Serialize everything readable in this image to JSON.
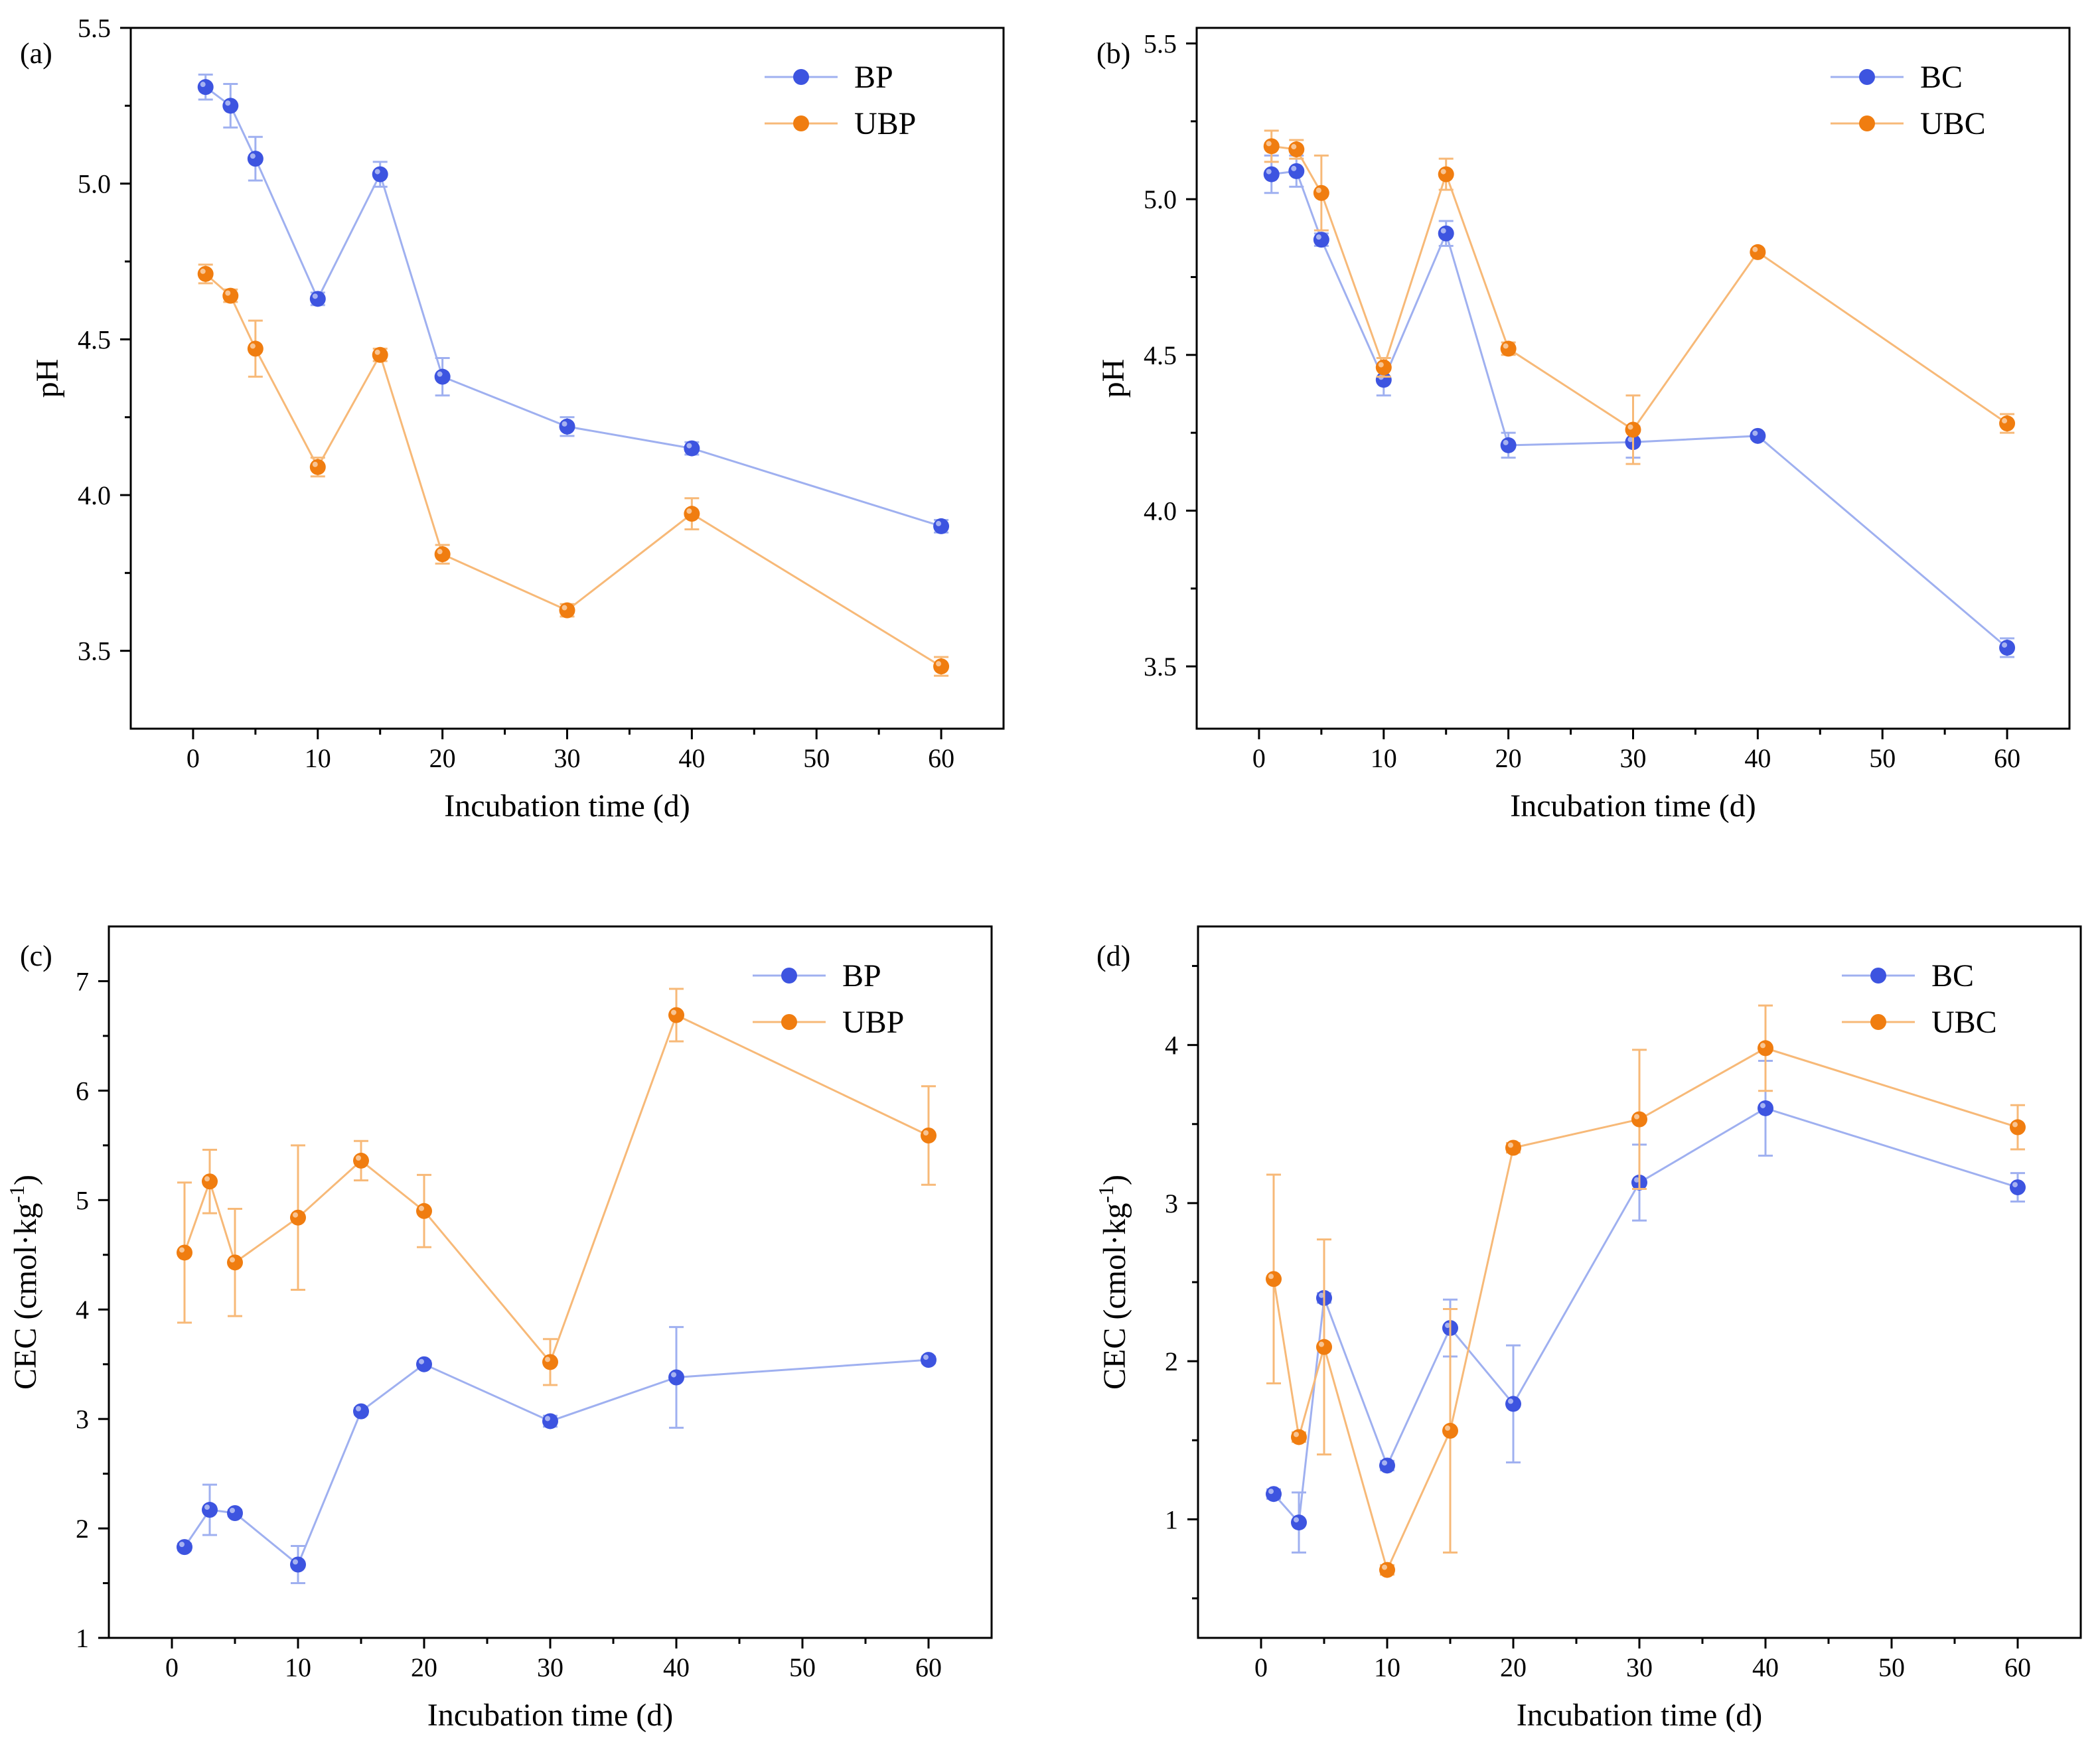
{
  "colors": {
    "blue_line": "#9fb0f0",
    "blue_marker": "#3d54e0",
    "orange_line": "#f7b978",
    "orange_marker": "#f07d10"
  },
  "chart_data": [
    {
      "type": "line",
      "panel_label": "(a)",
      "xlabel": "Incubation time (d)",
      "ylabel": "pH",
      "xlim": [
        -5,
        65
      ],
      "ylim": [
        3.25,
        5.5
      ],
      "xticks": [
        0,
        10,
        20,
        30,
        40,
        50,
        60
      ],
      "yticks": [
        3.5,
        4.0,
        4.5,
        5.0,
        5.5
      ],
      "ytick_labels": [
        "3.5",
        "4.0",
        "4.5",
        "5.0",
        "5.5"
      ],
      "legend_position": "top-right",
      "x": [
        1,
        3,
        5,
        10,
        15,
        20,
        30,
        40,
        60
      ],
      "series": [
        {
          "name": "BP",
          "color": "blue",
          "values": [
            5.31,
            5.25,
            5.08,
            4.63,
            5.03,
            4.38,
            4.22,
            4.15,
            3.9
          ],
          "errors": [
            0.04,
            0.07,
            0.07,
            0.02,
            0.04,
            0.06,
            0.03,
            0.02,
            0.02
          ]
        },
        {
          "name": "UBP",
          "color": "orange",
          "values": [
            4.71,
            4.64,
            4.47,
            4.09,
            4.45,
            3.81,
            3.63,
            3.94,
            3.45
          ],
          "errors": [
            0.03,
            0.02,
            0.09,
            0.03,
            0.02,
            0.03,
            0.02,
            0.05,
            0.03
          ]
        }
      ]
    },
    {
      "type": "line",
      "panel_label": "(b)",
      "xlabel": "Incubation time (d)",
      "ylabel": "pH",
      "xlim": [
        -5,
        65
      ],
      "ylim": [
        3.3,
        5.55
      ],
      "xticks": [
        0,
        10,
        20,
        30,
        40,
        50,
        60
      ],
      "yticks": [
        3.5,
        4.0,
        4.5,
        5.0,
        5.5
      ],
      "ytick_labels": [
        "3.5",
        "4.0",
        "4.5",
        "5.0",
        "5.5"
      ],
      "legend_position": "top-right",
      "x": [
        1,
        3,
        5,
        10,
        15,
        20,
        30,
        40,
        60
      ],
      "series": [
        {
          "name": "BC",
          "color": "blue",
          "values": [
            5.08,
            5.09,
            4.87,
            4.42,
            4.89,
            4.21,
            4.22,
            4.24,
            3.56
          ],
          "errors": [
            0.06,
            0.05,
            0.02,
            0.05,
            0.04,
            0.04,
            0.05,
            0.01,
            0.03
          ]
        },
        {
          "name": "UBC",
          "color": "orange",
          "values": [
            5.17,
            5.16,
            5.02,
            4.46,
            5.08,
            4.52,
            4.26,
            4.83,
            4.28
          ],
          "errors": [
            0.05,
            0.03,
            0.12,
            0.03,
            0.05,
            0.02,
            0.11,
            0.01,
            0.03
          ]
        }
      ]
    },
    {
      "type": "line",
      "panel_label": "(c)",
      "xlabel": "Incubation time (d)",
      "ylabel": "CEC (cmol·kg-1)",
      "ylabel_main": "CEC (cmol·kg",
      "ylabel_sup": "-1",
      "ylabel_end": ")",
      "xlim": [
        -5,
        65
      ],
      "ylim": [
        1,
        7.5
      ],
      "xticks": [
        0,
        10,
        20,
        30,
        40,
        50,
        60
      ],
      "yticks": [
        1,
        2,
        3,
        4,
        5,
        6,
        7
      ],
      "ytick_labels": [
        "1",
        "2",
        "3",
        "4",
        "5",
        "6",
        "7"
      ],
      "legend_position": "top-right",
      "x": [
        1,
        3,
        5,
        10,
        15,
        20,
        30,
        40,
        60
      ],
      "series": [
        {
          "name": "BP",
          "color": "blue",
          "values": [
            1.83,
            2.17,
            2.14,
            1.67,
            3.07,
            3.5,
            2.98,
            3.38,
            3.54
          ],
          "errors": [
            0.03,
            0.23,
            0.03,
            0.17,
            0.03,
            0.03,
            0.05,
            0.46,
            0.03
          ]
        },
        {
          "name": "UBP",
          "color": "orange",
          "values": [
            4.52,
            5.17,
            4.43,
            4.84,
            5.36,
            4.9,
            3.52,
            6.69,
            5.59
          ],
          "errors": [
            0.64,
            0.29,
            0.49,
            0.66,
            0.18,
            0.33,
            0.21,
            0.24,
            0.45
          ]
        }
      ]
    },
    {
      "type": "line",
      "panel_label": "(d)",
      "xlabel": "Incubation time (d)",
      "ylabel": "CEC (cmol·kg-1)",
      "ylabel_main": "CEC (cmol·kg",
      "ylabel_sup": "-1",
      "ylabel_end": ")",
      "xlim": [
        -5,
        65
      ],
      "ylim": [
        0.25,
        4.75
      ],
      "xticks": [
        0,
        10,
        20,
        30,
        40,
        50,
        60
      ],
      "yticks": [
        1,
        2,
        3,
        4
      ],
      "ytick_labels": [
        "1",
        "2",
        "3",
        "4"
      ],
      "legend_position": "top-right",
      "x": [
        1,
        3,
        5,
        10,
        15,
        20,
        30,
        40,
        60
      ],
      "series": [
        {
          "name": "BC",
          "color": "blue",
          "values": [
            1.16,
            0.98,
            2.4,
            1.34,
            2.21,
            1.73,
            3.13,
            3.6,
            3.1
          ],
          "errors": [
            0.03,
            0.19,
            0.03,
            0.03,
            0.18,
            0.37,
            0.24,
            0.3,
            0.09
          ]
        },
        {
          "name": "UBC",
          "color": "orange",
          "values": [
            2.52,
            1.52,
            2.09,
            0.68,
            1.56,
            3.35,
            3.53,
            3.98,
            3.48
          ],
          "errors": [
            0.66,
            0.03,
            0.68,
            0.03,
            0.77,
            0.03,
            0.44,
            0.27,
            0.14
          ]
        }
      ]
    }
  ]
}
